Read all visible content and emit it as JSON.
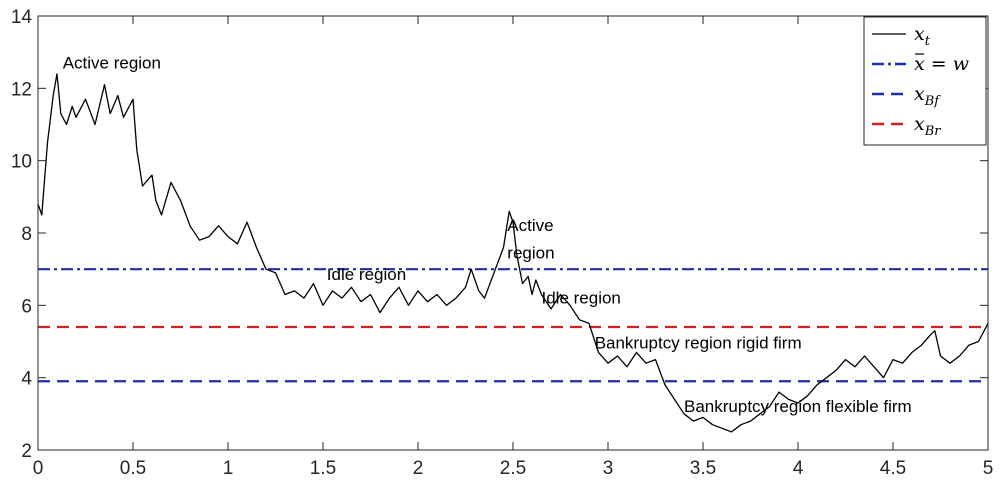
{
  "chart_data": {
    "type": "line",
    "title": "",
    "xlabel": "",
    "ylabel": "",
    "xlim": [
      0,
      5
    ],
    "ylim": [
      2,
      14
    ],
    "xticks": [
      0,
      0.5,
      1,
      1.5,
      2,
      2.5,
      3,
      3.5,
      4,
      4.5,
      5
    ],
    "xtick_labels": [
      "0",
      "0.5",
      "1",
      "1.5",
      "2",
      "2.5",
      "3",
      "3.5",
      "4",
      "4.5",
      "5"
    ],
    "yticks": [
      2,
      4,
      6,
      8,
      10,
      12,
      14
    ],
    "ytick_labels": [
      "2",
      "4",
      "6",
      "8",
      "10",
      "12",
      "14"
    ],
    "grid": false,
    "legend_position": "top-right",
    "legend": [
      {
        "main": "x",
        "sub": "t",
        "bar": false,
        "style": "solid",
        "color": "#000000"
      },
      {
        "main": "x",
        "sub": "",
        "bar": true,
        "suffix": " = w",
        "style": "dashdot",
        "color": "#1f2fa8"
      },
      {
        "main": "x",
        "sub": "Bf",
        "bar": false,
        "style": "dashed",
        "color": "#1f2fa8"
      },
      {
        "main": "x",
        "sub": "Br",
        "bar": false,
        "style": "dashed",
        "color": "#d42020"
      }
    ],
    "horizontal_lines": [
      {
        "y": 7.0,
        "style": "dashdot",
        "color": "#1f2fa8"
      },
      {
        "y": 3.9,
        "style": "dashed",
        "color": "#1f2fa8"
      },
      {
        "y": 5.4,
        "style": "dashed",
        "color": "#d42020"
      }
    ],
    "series": [
      {
        "style": "solid",
        "color": "#000000",
        "x": [
          0,
          0.02,
          0.05,
          0.08,
          0.1,
          0.12,
          0.15,
          0.18,
          0.2,
          0.25,
          0.3,
          0.35,
          0.38,
          0.42,
          0.45,
          0.5,
          0.52,
          0.55,
          0.6,
          0.62,
          0.65,
          0.7,
          0.75,
          0.8,
          0.85,
          0.9,
          0.95,
          1.0,
          1.05,
          1.1,
          1.15,
          1.2,
          1.25,
          1.3,
          1.35,
          1.4,
          1.45,
          1.5,
          1.55,
          1.6,
          1.65,
          1.7,
          1.75,
          1.8,
          1.85,
          1.9,
          1.95,
          2.0,
          2.05,
          2.1,
          2.15,
          2.2,
          2.25,
          2.28,
          2.32,
          2.35,
          2.4,
          2.45,
          2.48,
          2.5,
          2.52,
          2.55,
          2.58,
          2.6,
          2.62,
          2.65,
          2.7,
          2.75,
          2.8,
          2.85,
          2.9,
          2.95,
          3.0,
          3.05,
          3.1,
          3.15,
          3.2,
          3.25,
          3.3,
          3.35,
          3.4,
          3.45,
          3.5,
          3.55,
          3.6,
          3.65,
          3.7,
          3.75,
          3.8,
          3.85,
          3.9,
          3.95,
          4.0,
          4.05,
          4.1,
          4.15,
          4.2,
          4.25,
          4.3,
          4.35,
          4.4,
          4.45,
          4.5,
          4.55,
          4.6,
          4.65,
          4.7,
          4.72,
          4.75,
          4.8,
          4.85,
          4.9,
          4.95,
          5.0
        ],
        "y": [
          8.8,
          8.5,
          10.5,
          11.8,
          12.4,
          11.3,
          11.0,
          11.5,
          11.2,
          11.7,
          11.0,
          12.1,
          11.3,
          11.8,
          11.2,
          11.7,
          10.3,
          9.3,
          9.6,
          8.9,
          8.5,
          9.4,
          8.9,
          8.2,
          7.8,
          7.9,
          8.2,
          7.9,
          7.7,
          8.3,
          7.6,
          7.0,
          6.9,
          6.3,
          6.4,
          6.2,
          6.6,
          6.0,
          6.4,
          6.2,
          6.5,
          6.1,
          6.3,
          5.8,
          6.2,
          6.5,
          6.0,
          6.4,
          6.1,
          6.3,
          6.0,
          6.2,
          6.5,
          7.0,
          6.4,
          6.2,
          6.9,
          7.6,
          8.6,
          8.3,
          7.4,
          6.6,
          6.8,
          6.3,
          6.7,
          6.3,
          5.9,
          6.3,
          6.0,
          5.6,
          5.5,
          4.7,
          4.4,
          4.6,
          4.3,
          4.7,
          4.4,
          4.5,
          3.8,
          3.4,
          3.0,
          2.8,
          2.9,
          2.7,
          2.6,
          2.5,
          2.7,
          2.8,
          3.0,
          3.2,
          3.6,
          3.4,
          3.3,
          3.5,
          3.8,
          4.0,
          4.2,
          4.5,
          4.3,
          4.6,
          4.3,
          4.0,
          4.5,
          4.4,
          4.7,
          4.9,
          5.2,
          5.3,
          4.6,
          4.4,
          4.6,
          4.9,
          5.0,
          5.5
        ]
      }
    ],
    "annotations": [
      {
        "text": "Active region",
        "x": 0.13,
        "y": 12.55
      },
      {
        "text": "Idle region",
        "x": 1.52,
        "y": 6.7
      },
      {
        "text": "Active",
        "x": 2.47,
        "y": 8.05
      },
      {
        "text": "region",
        "x": 2.47,
        "y": 7.3
      },
      {
        "text": "Idle region",
        "x": 2.65,
        "y": 6.05
      },
      {
        "text": "Bankruptcy region rigid firm",
        "x": 2.93,
        "y": 4.8
      },
      {
        "text": "Bankruptcy region flexible firm",
        "x": 3.4,
        "y": 3.05
      }
    ]
  }
}
